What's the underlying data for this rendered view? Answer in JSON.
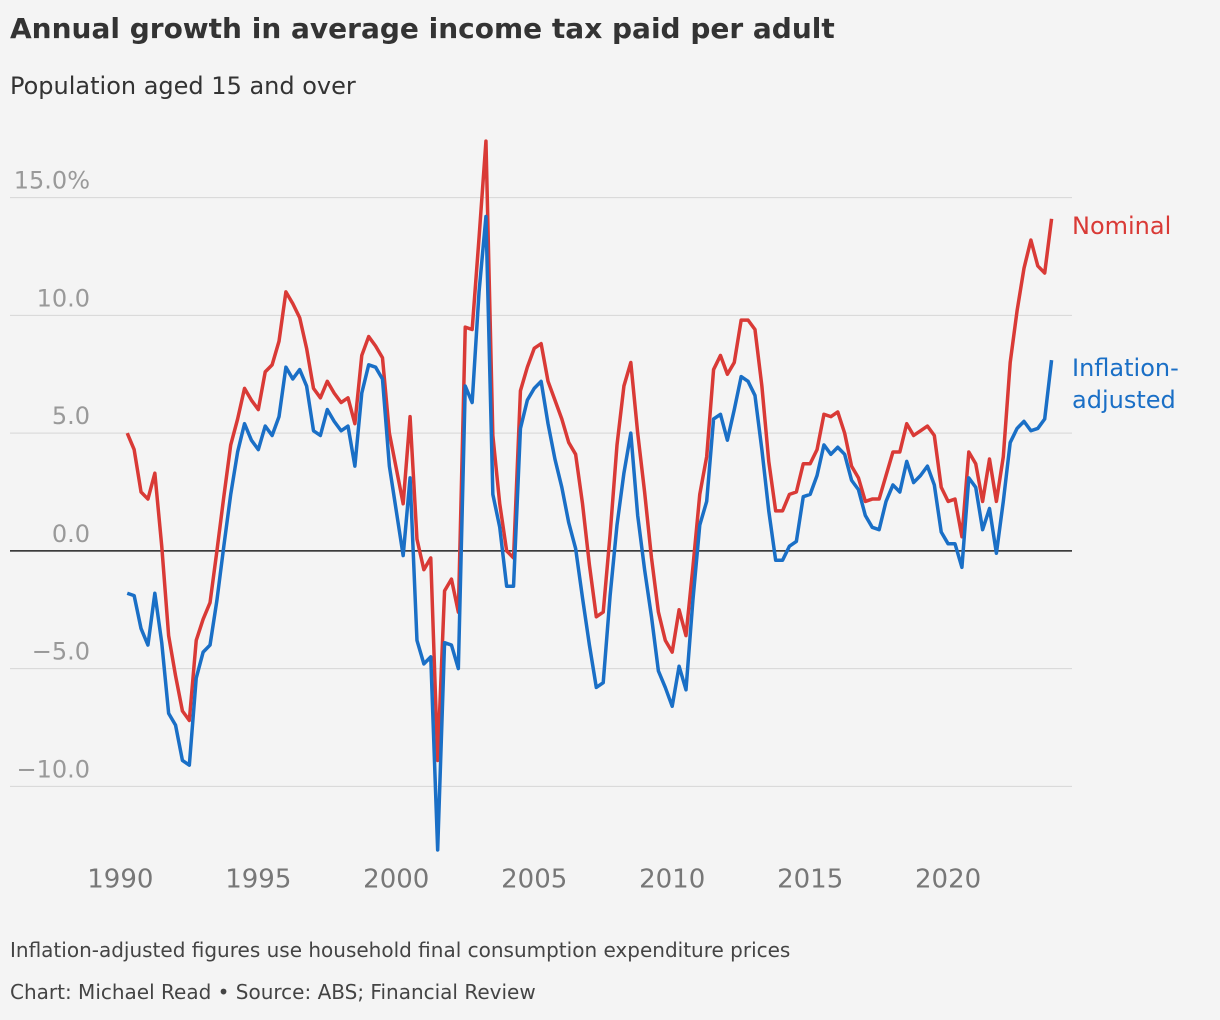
{
  "chart_data": {
    "type": "line",
    "title": "Annual growth in average income tax paid per adult",
    "subtitle": "Population aged 15 and over",
    "notes": [
      "Inflation-adjusted figures use household final consumption expenditure prices",
      "Chart: Michael Read • Source: ABS; Financial Review"
    ],
    "x": [
      1990.25,
      1990.5,
      1990.75,
      1991,
      1991.25,
      1991.5,
      1991.75,
      1992,
      1992.25,
      1992.5,
      1992.75,
      1993,
      1993.25,
      1993.5,
      1993.75,
      1994,
      1994.25,
      1994.5,
      1994.75,
      1995,
      1995.25,
      1995.5,
      1995.75,
      1996,
      1996.25,
      1996.5,
      1996.75,
      1997,
      1997.25,
      1997.5,
      1997.75,
      1998,
      1998.25,
      1998.5,
      1998.75,
      1999,
      1999.25,
      1999.5,
      1999.75,
      2000,
      2000.25,
      2000.5,
      2000.75,
      2001,
      2001.25,
      2001.5,
      2001.75,
      2002,
      2002.25,
      2002.5,
      2002.75,
      2003,
      2003.25,
      2003.5,
      2003.75,
      2004,
      2004.25,
      2004.5,
      2004.75,
      2005,
      2005.25,
      2005.5,
      2005.75,
      2006,
      2006.25,
      2006.5,
      2006.75,
      2007,
      2007.25,
      2007.5,
      2007.75,
      2008,
      2008.25,
      2008.5,
      2008.75,
      2009,
      2009.25,
      2009.5,
      2009.75,
      2010,
      2010.25,
      2010.5,
      2010.75,
      2011,
      2011.25,
      2011.5,
      2011.75,
      2012,
      2012.25,
      2012.5,
      2012.75,
      2013,
      2013.25,
      2013.5,
      2013.75,
      2014,
      2014.25,
      2014.5,
      2014.75,
      2015,
      2015.25,
      2015.5,
      2015.75,
      2016,
      2016.25,
      2016.5,
      2016.75,
      2017,
      2017.25,
      2017.5,
      2017.75,
      2018,
      2018.25,
      2018.5,
      2018.75,
      2019,
      2019.25,
      2019.5,
      2019.75,
      2020,
      2020.25,
      2020.5,
      2020.75,
      2021,
      2021.25,
      2021.5,
      2021.75,
      2022,
      2022.25,
      2022.5,
      2022.75,
      2023,
      2023.25,
      2023.5,
      2023.75
    ],
    "series": [
      {
        "name": "Nominal",
        "color": "#d93a36",
        "values": [
          5.0,
          4.3,
          2.5,
          2.2,
          3.3,
          0.2,
          -3.6,
          -5.3,
          -6.8,
          -7.2,
          -3.8,
          -2.9,
          -2.2,
          0.0,
          2.3,
          4.5,
          5.6,
          6.9,
          6.4,
          6.0,
          7.6,
          7.9,
          8.9,
          11.0,
          10.5,
          9.9,
          8.6,
          6.9,
          6.5,
          7.2,
          6.7,
          6.3,
          6.5,
          5.4,
          8.3,
          9.1,
          8.7,
          8.2,
          5.0,
          3.5,
          2.0,
          5.7,
          0.5,
          -0.8,
          -0.3,
          -8.9,
          -1.7,
          -1.2,
          -2.6,
          9.5,
          9.4,
          13.3,
          17.4,
          4.9,
          2.0,
          0.0,
          -0.3,
          6.8,
          7.8,
          8.6,
          8.8,
          7.2,
          6.4,
          5.6,
          4.6,
          4.1,
          2.0,
          -0.6,
          -2.8,
          -2.6,
          0.7,
          4.5,
          7.0,
          8.0,
          5.0,
          2.5,
          -0.3,
          -2.6,
          -3.8,
          -4.3,
          -2.5,
          -3.6,
          -0.7,
          2.4,
          4.0,
          7.7,
          8.3,
          7.5,
          8.0,
          9.8,
          9.8,
          9.4,
          7.0,
          3.8,
          1.7,
          1.7,
          2.4,
          2.5,
          3.7,
          3.7,
          4.3,
          5.8,
          5.7,
          5.9,
          5.0,
          3.6,
          3.1,
          2.1,
          2.2,
          2.2,
          3.2,
          4.2,
          4.2,
          5.4,
          4.9,
          5.1,
          5.3,
          4.9,
          2.7,
          2.1,
          2.2,
          0.6,
          4.2,
          3.7,
          2.1,
          3.9,
          2.1,
          4.0,
          8.0,
          10.2,
          12.0,
          13.2,
          12.1,
          11.8,
          14.1
        ]
      },
      {
        "name": "Inflation-adjusted",
        "color": "#1a6fc6",
        "values": [
          -1.8,
          -1.9,
          -3.3,
          -4.0,
          -1.8,
          -3.9,
          -6.9,
          -7.4,
          -8.9,
          -9.1,
          -5.4,
          -4.3,
          -4.0,
          -2.1,
          0.2,
          2.4,
          4.2,
          5.4,
          4.7,
          4.3,
          5.3,
          4.9,
          5.7,
          7.8,
          7.3,
          7.7,
          7.0,
          5.1,
          4.9,
          6.0,
          5.5,
          5.1,
          5.3,
          3.6,
          6.7,
          7.9,
          7.8,
          7.3,
          3.6,
          1.7,
          -0.2,
          3.1,
          -3.8,
          -4.8,
          -4.5,
          -12.7,
          -3.9,
          -4.0,
          -5.0,
          7.0,
          6.3,
          11.0,
          14.2,
          2.4,
          1.0,
          -1.5,
          -1.5,
          5.2,
          6.4,
          6.9,
          7.2,
          5.4,
          3.9,
          2.7,
          1.2,
          0.1,
          -2.0,
          -4.0,
          -5.8,
          -5.6,
          -1.9,
          1.1,
          3.3,
          5.0,
          1.5,
          -0.8,
          -2.8,
          -5.1,
          -5.8,
          -6.6,
          -4.9,
          -5.9,
          -2.1,
          1.1,
          2.1,
          5.6,
          5.8,
          4.7,
          6.0,
          7.4,
          7.2,
          6.6,
          4.3,
          1.7,
          -0.4,
          -0.4,
          0.2,
          0.4,
          2.3,
          2.4,
          3.2,
          4.5,
          4.1,
          4.4,
          4.1,
          3.0,
          2.6,
          1.5,
          1.0,
          0.9,
          2.1,
          2.8,
          2.5,
          3.8,
          2.9,
          3.2,
          3.6,
          2.8,
          0.8,
          0.3,
          0.3,
          -0.7,
          3.1,
          2.7,
          0.9,
          1.8,
          -0.1,
          2.1,
          4.6,
          5.2,
          5.5,
          5.1,
          5.2,
          5.6,
          8.1
        ]
      }
    ],
    "xlim": [
      1988.9,
      2024.2
    ],
    "ylim": [
      -13,
      18
    ],
    "xticks": [
      1990,
      1995,
      2000,
      2005,
      2010,
      2015,
      2020
    ],
    "yticks": [
      {
        "value": -10,
        "label": "−10.0"
      },
      {
        "value": -5,
        "label": "−5.0"
      },
      {
        "value": 0,
        "label": "0.0"
      },
      {
        "value": 5,
        "label": "5.0"
      },
      {
        "value": 10,
        "label": "10.0"
      },
      {
        "value": 15,
        "label": "15.0%"
      }
    ],
    "grid": true
  }
}
